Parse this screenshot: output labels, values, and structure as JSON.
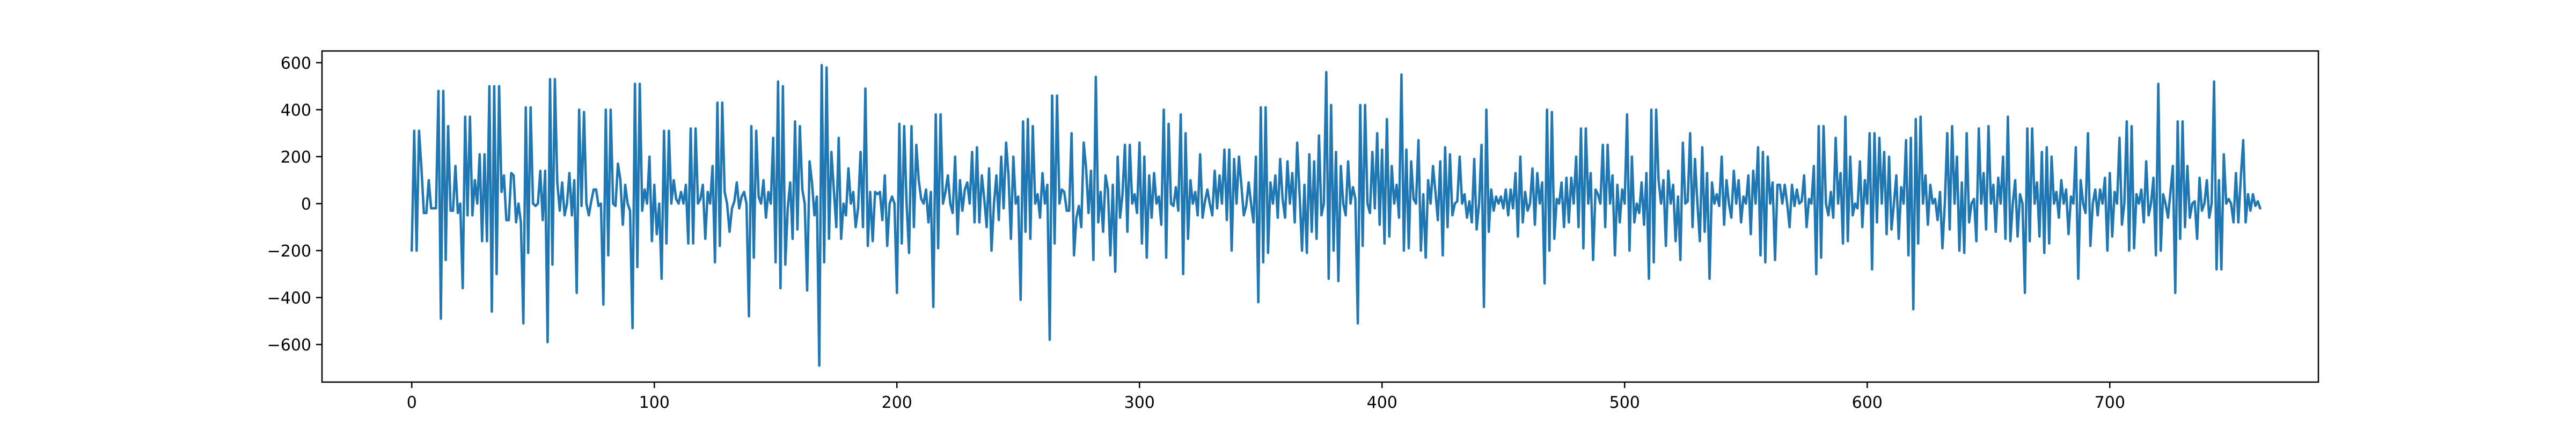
{
  "chart_data": {
    "type": "line",
    "title": "",
    "xlabel": "",
    "ylabel": "",
    "xlim": [
      -37,
      786
    ],
    "ylim": [
      -760,
      650
    ],
    "xticks": [
      0,
      100,
      200,
      300,
      400,
      500,
      600,
      700
    ],
    "xtick_labels": [
      "0",
      "100",
      "200",
      "300",
      "400",
      "500",
      "600",
      "700"
    ],
    "yticks": [
      -600,
      -400,
      -200,
      0,
      200,
      400,
      600
    ],
    "ytick_labels": [
      "−600",
      "−400",
      "−200",
      "0",
      "200",
      "400",
      "600"
    ],
    "grid": false,
    "legend": "none",
    "series": [
      {
        "color": "#1f77b4",
        "x_start": 0,
        "x_step": 1,
        "values": [
          -200,
          310,
          -200,
          310,
          150,
          -40,
          -40,
          100,
          -20,
          -20,
          -20,
          480,
          -490,
          480,
          -240,
          330,
          -30,
          -30,
          160,
          -40,
          0,
          -360,
          370,
          -50,
          370,
          -50,
          100,
          0,
          210,
          -160,
          210,
          -160,
          500,
          -460,
          500,
          -300,
          500,
          50,
          120,
          -70,
          -70,
          130,
          120,
          -80,
          0,
          -80,
          -510,
          410,
          -210,
          410,
          0,
          -10,
          0,
          140,
          -70,
          140,
          -590,
          530,
          -260,
          530,
          90,
          -30,
          90,
          -50,
          0,
          130,
          -50,
          100,
          -380,
          400,
          -10,
          390,
          0,
          -50,
          10,
          60,
          60,
          -10,
          0,
          -430,
          400,
          -220,
          400,
          0,
          -10,
          170,
          100,
          -90,
          80,
          0,
          -30,
          -530,
          510,
          -270,
          510,
          -30,
          60,
          0,
          200,
          -160,
          80,
          -130,
          0,
          -320,
          310,
          -170,
          310,
          0,
          100,
          20,
          0,
          50,
          0,
          80,
          -170,
          320,
          -170,
          320,
          0,
          20,
          80,
          -150,
          50,
          0,
          160,
          -250,
          430,
          -180,
          430,
          50,
          0,
          -120,
          -20,
          10,
          90,
          -20,
          30,
          50,
          0,
          -480,
          330,
          -230,
          310,
          30,
          0,
          100,
          -60,
          50,
          0,
          280,
          -250,
          520,
          -360,
          500,
          -260,
          -20,
          90,
          -150,
          350,
          -110,
          330,
          60,
          0,
          -370,
          180,
          90,
          -50,
          30,
          -690,
          590,
          -250,
          580,
          -150,
          220,
          60,
          -100,
          280,
          -150,
          0,
          -50,
          150,
          0,
          50,
          -100,
          -20,
          220,
          -100,
          490,
          -180,
          50,
          -160,
          50,
          40,
          50,
          -70,
          120,
          -180,
          0,
          30,
          0,
          -380,
          340,
          -170,
          330,
          0,
          -210,
          330,
          -100,
          250,
          100,
          20,
          0,
          60,
          -80,
          50,
          -440,
          380,
          -190,
          380,
          0,
          50,
          120,
          0,
          -40,
          200,
          -130,
          100,
          -30,
          60,
          90,
          0,
          220,
          -80,
          240,
          -80,
          120,
          20,
          -100,
          150,
          -200,
          0,
          120,
          -70,
          200,
          -20,
          260,
          120,
          -150,
          200,
          0,
          30,
          -410,
          350,
          -120,
          360,
          -150,
          330,
          0,
          40,
          -60,
          130,
          0,
          80,
          -580,
          460,
          -170,
          460,
          0,
          60,
          50,
          -30,
          -30,
          300,
          -220,
          -60,
          -10,
          -100,
          260,
          150,
          -40,
          140,
          -240,
          540,
          -80,
          50,
          -120,
          120,
          60,
          -220,
          80,
          -290,
          200,
          -60,
          40,
          250,
          -120,
          250,
          0,
          40,
          -40,
          260,
          -170,
          200,
          -230,
          120,
          -60,
          130,
          0,
          30,
          -90,
          400,
          -230,
          340,
          0,
          -10,
          70,
          -30,
          380,
          -300,
          300,
          -150,
          100,
          0,
          50,
          -50,
          210,
          -60,
          10,
          60,
          0,
          -50,
          140,
          -20,
          120,
          0,
          230,
          -70,
          230,
          -200,
          190,
          0,
          200,
          80,
          -50,
          -10,
          90,
          0,
          -80,
          200,
          -420,
          410,
          -250,
          410,
          -210,
          90,
          0,
          120,
          -60,
          190,
          20,
          -60,
          180,
          0,
          130,
          -80,
          260,
          40,
          -200,
          80,
          -210,
          210,
          -120,
          180,
          -150,
          290,
          -50,
          0,
          560,
          -320,
          420,
          -200,
          220,
          -330,
          160,
          0,
          -50,
          180,
          0,
          70,
          20,
          -510,
          420,
          -180,
          420,
          0,
          -40,
          220,
          -20,
          300,
          -90,
          230,
          -170,
          360,
          -140,
          160,
          0,
          80,
          -60,
          550,
          -200,
          230,
          -190,
          180,
          20,
          0,
          270,
          -200,
          40,
          -230,
          100,
          0,
          160,
          50,
          -70,
          180,
          -220,
          240,
          -100,
          210,
          -50,
          0,
          10,
          200,
          0,
          40,
          -60,
          10,
          -80,
          190,
          -110,
          0,
          250,
          -440,
          400,
          -120,
          60,
          -30,
          30,
          0,
          30,
          -20,
          60,
          -50,
          60,
          -20,
          130,
          -140,
          200,
          -80,
          50,
          -30,
          0,
          150,
          -90,
          130,
          0,
          90,
          -340,
          400,
          -200,
          390,
          -150,
          20,
          0,
          90,
          -100,
          110,
          -80,
          110,
          0,
          200,
          -100,
          320,
          -190,
          320,
          0,
          130,
          -240,
          60,
          40,
          0,
          250,
          -100,
          250,
          0,
          120,
          -220,
          80,
          -80,
          60,
          0,
          380,
          -200,
          200,
          -80,
          0,
          -40,
          90,
          -90,
          130,
          -320,
          400,
          -250,
          400,
          100,
          0,
          100,
          -180,
          140,
          0,
          80,
          -160,
          30,
          -240,
          260,
          0,
          10,
          300,
          -100,
          190,
          0,
          -160,
          240,
          -120,
          130,
          -320,
          90,
          0,
          40,
          -10,
          200,
          -90,
          100,
          0,
          -60,
          140,
          0,
          100,
          -80,
          30,
          0,
          120,
          -130,
          140,
          0,
          240,
          -220,
          220,
          -250,
          200,
          0,
          90,
          -240,
          80,
          80,
          0,
          80,
          0,
          -100,
          80,
          -10,
          60,
          0,
          10,
          120,
          -100,
          20,
          0,
          160,
          -300,
          330,
          -230,
          330,
          0,
          -50,
          50,
          -60,
          280,
          0,
          130,
          -170,
          370,
          -160,
          200,
          -50,
          0,
          -20,
          180,
          -100,
          100,
          0,
          300,
          -280,
          300,
          -80,
          280,
          0,
          220,
          -130,
          200,
          -110,
          0,
          120,
          -150,
          70,
          0,
          270,
          -220,
          280,
          -450,
          360,
          -170,
          370,
          0,
          120,
          -90,
          80,
          0,
          20,
          -70,
          50,
          -190,
          0,
          300,
          -110,
          330,
          0,
          200,
          -200,
          90,
          -210,
          300,
          -80,
          0,
          20,
          -160,
          320,
          0,
          130,
          -110,
          330,
          0,
          80,
          -120,
          110,
          0,
          200,
          -150,
          370,
          -160,
          0,
          100,
          -140,
          40,
          0,
          -380,
          320,
          -160,
          320,
          0,
          90,
          -140,
          220,
          -210,
          240,
          -170,
          200,
          0,
          50,
          -60,
          100,
          0,
          60,
          -130,
          30,
          0,
          240,
          -320,
          100,
          0,
          -40,
          300,
          -180,
          0,
          60,
          -50,
          60,
          0,
          110,
          -200,
          130,
          -140,
          50,
          0,
          280,
          -90,
          0,
          350,
          -200,
          330,
          -190,
          40,
          0,
          60,
          -80,
          180,
          -50,
          0,
          110,
          -220,
          510,
          -200,
          40,
          0,
          -60,
          50,
          160,
          -380,
          350,
          -150,
          350,
          -100,
          160,
          -60,
          0,
          10,
          -150,
          110,
          -30,
          0,
          100,
          -60,
          0,
          520,
          -280,
          100,
          -280,
          210,
          0,
          20,
          0,
          -80,
          130,
          -80,
          110,
          270,
          -80,
          40,
          -30,
          40,
          -10,
          10,
          -20
        ]
      }
    ]
  }
}
